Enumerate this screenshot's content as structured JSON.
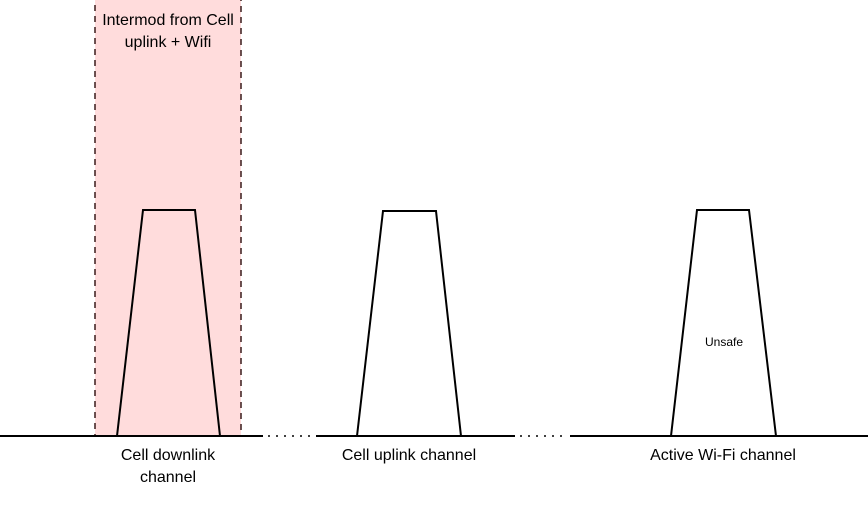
{
  "intermod_region": {
    "label": "Intermod from Cell uplink + Wifi",
    "fill": "#ffdcdc",
    "border": "#3a1a1a"
  },
  "channels": [
    {
      "label": "Cell downlink channel",
      "inner_text": ""
    },
    {
      "label": "Cell uplink channel",
      "inner_text": ""
    },
    {
      "label": "Active Wi-Fi channel",
      "inner_text": "Unsafe"
    }
  ]
}
